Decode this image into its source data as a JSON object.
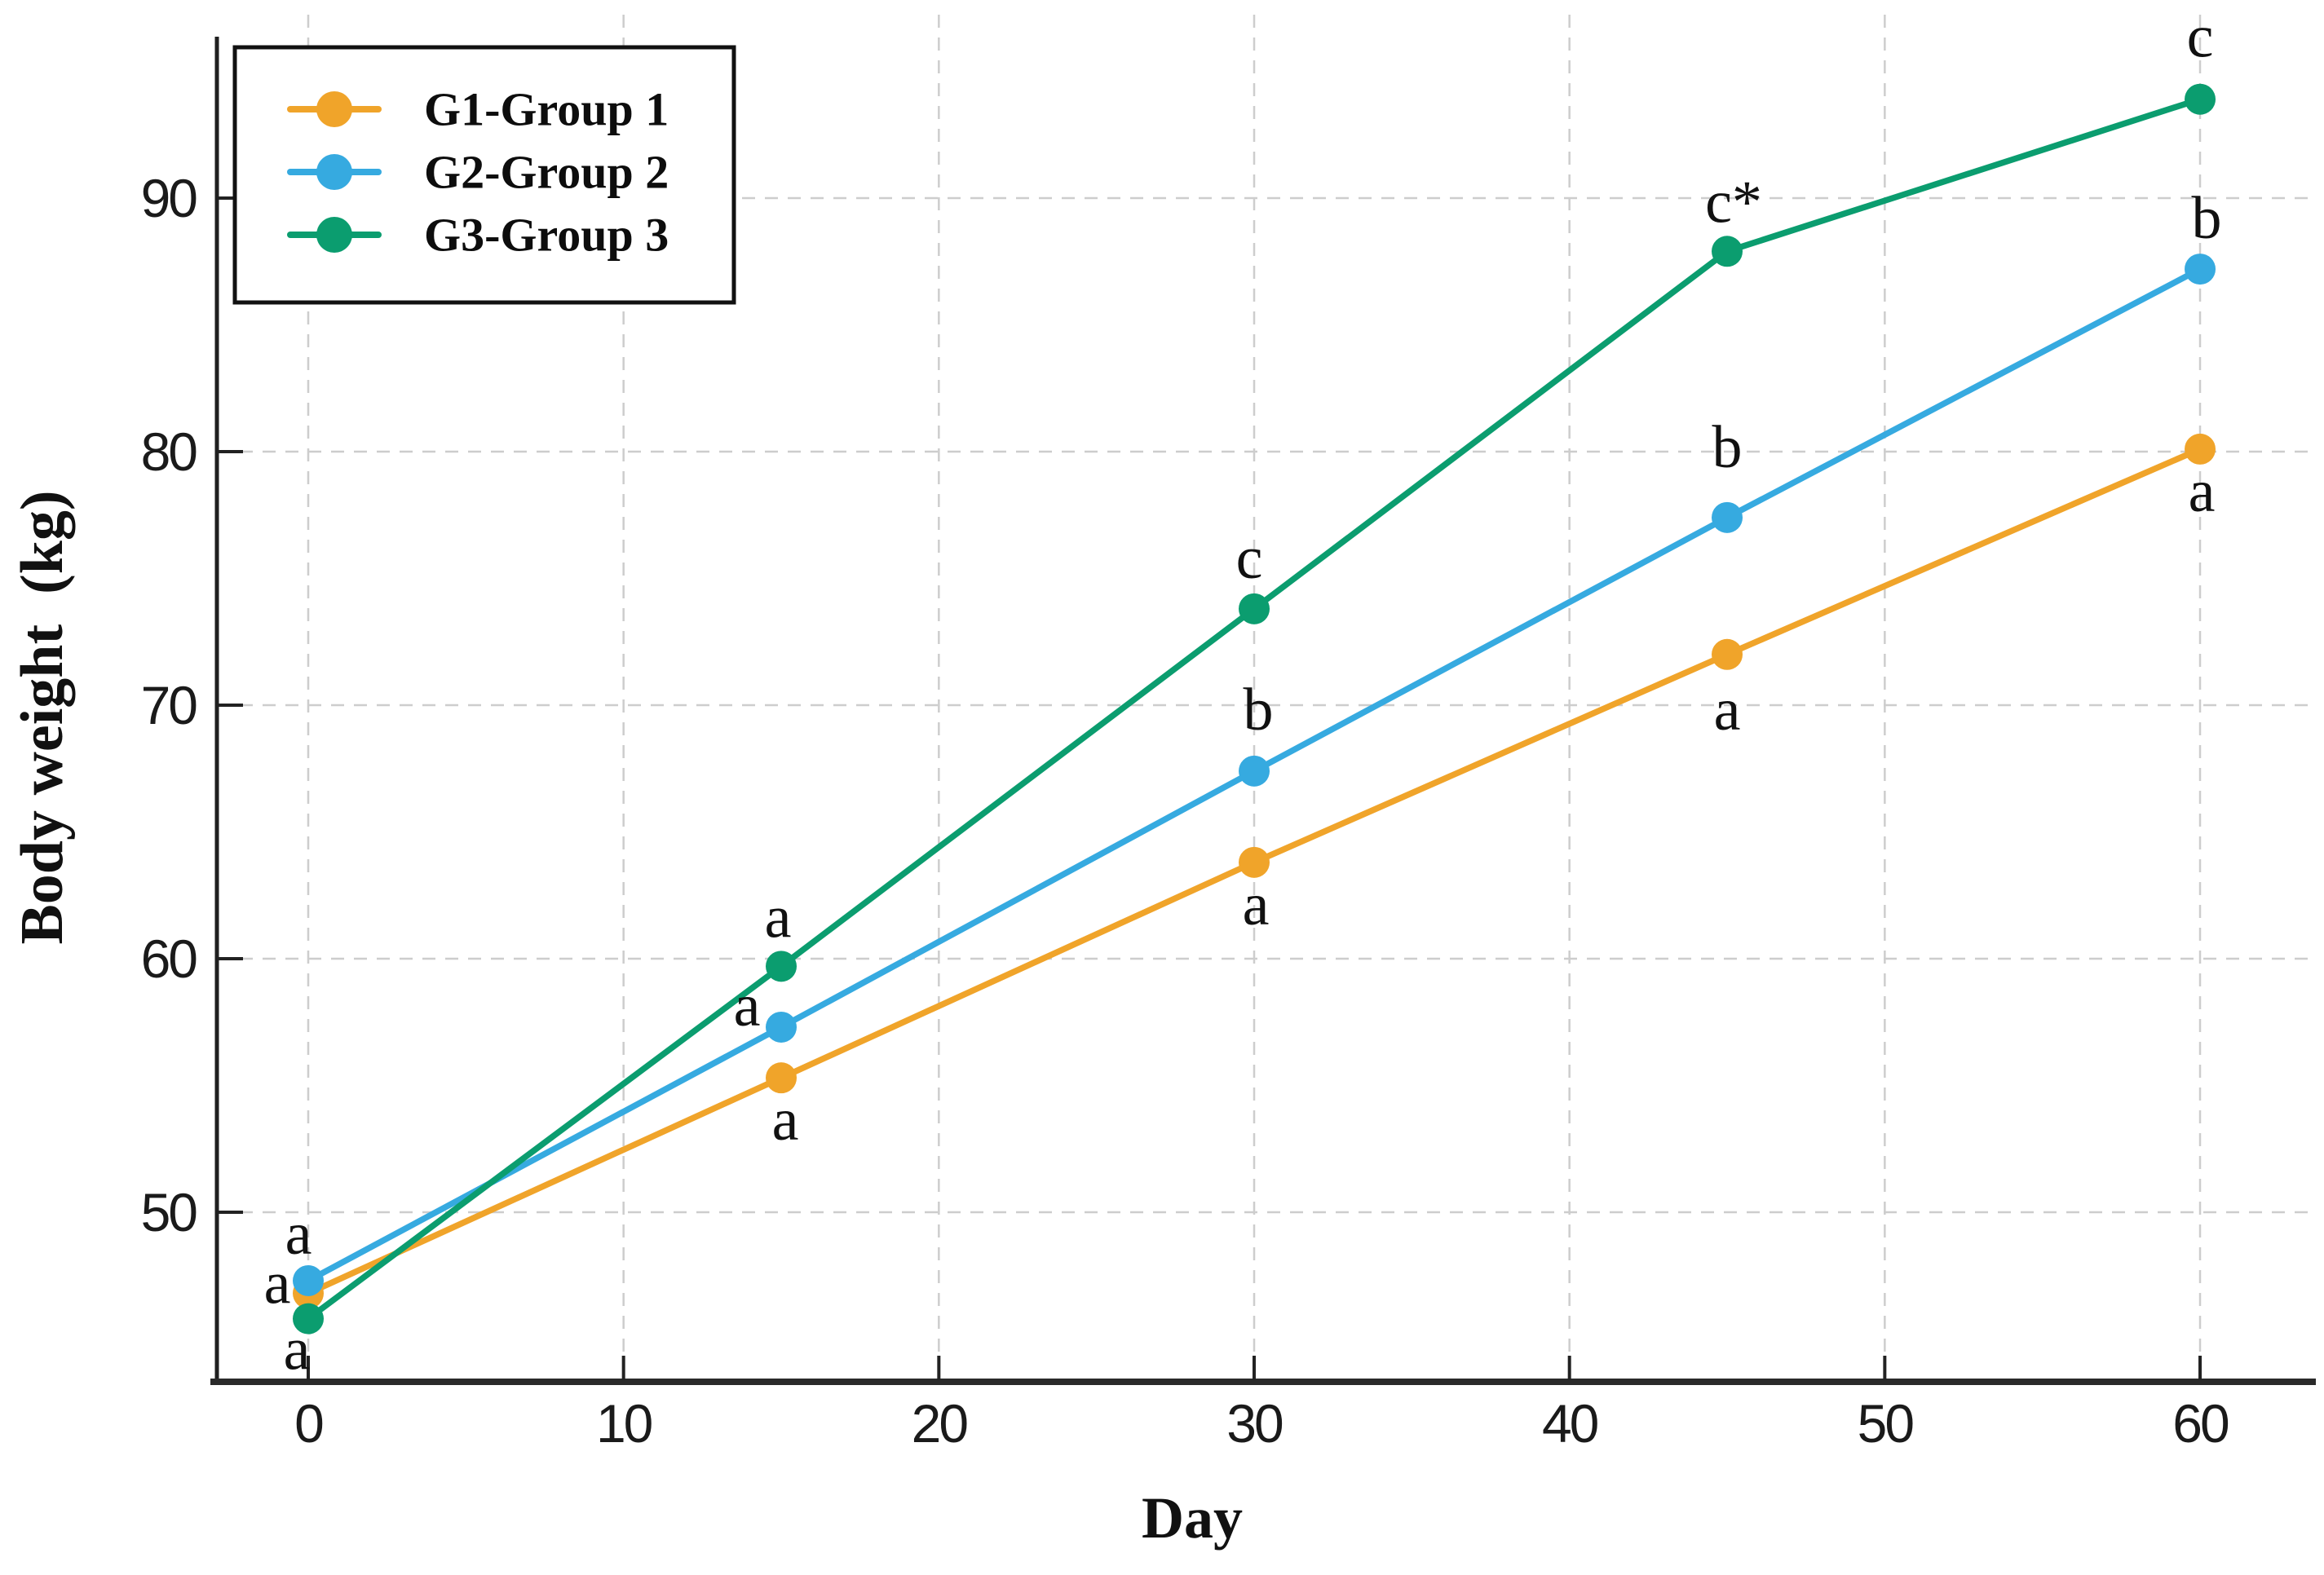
{
  "figure": {
    "background": "#ffffff",
    "text_color": "#1a1a1a",
    "grid_color": "#cdcdcd",
    "axis_color": "#2a2a2a"
  },
  "chart_data": {
    "type": "line",
    "title": "",
    "xlabel": "Day",
    "ylabel": "Body weight  (kg)",
    "x": [
      0,
      15,
      30,
      45,
      60
    ],
    "x_ticks": [
      0,
      10,
      20,
      30,
      40,
      50,
      60
    ],
    "y_ticks": [
      50,
      60,
      70,
      80,
      90
    ],
    "xlim": [
      -2.9,
      63.7
    ],
    "ylim": [
      43.3,
      97.2
    ],
    "grid": true,
    "grid_style": "dashed",
    "legend_position": "upper-left",
    "series": [
      {
        "name": "G1-Group 1",
        "color": "#F0A42A",
        "values": [
          46.8,
          55.3,
          63.8,
          72.0,
          80.1
        ],
        "sig_labels": [
          {
            "text": "a",
            "dx": -38,
            "dy": -12
          },
          {
            "text": "a",
            "dx": 5,
            "dy": 52
          },
          {
            "text": "a",
            "dx": 2,
            "dy": 52
          },
          {
            "text": "a",
            "dx": 0,
            "dy": 68
          },
          {
            "text": "a",
            "dx": 2,
            "dy": 52
          }
        ]
      },
      {
        "name": "G2-Group 2",
        "color": "#36AAE0",
        "values": [
          47.3,
          57.3,
          67.4,
          77.4,
          87.2
        ],
        "sig_labels": [
          {
            "text": "a",
            "dx": -12,
            "dy": -57
          },
          {
            "text": "a",
            "dx": -42,
            "dy": -26
          },
          {
            "text": "b",
            "dx": 5,
            "dy": -75
          },
          {
            "text": "b",
            "dx": 0,
            "dy": -86
          },
          {
            "text": "b",
            "dx": 8,
            "dy": -62
          }
        ]
      },
      {
        "name": "G3-Group 3",
        "color": "#0B9D6F",
        "values": [
          45.8,
          59.7,
          73.8,
          87.9,
          93.9
        ],
        "sig_labels": [
          {
            "text": "a",
            "dx": -14,
            "dy": 38
          },
          {
            "text": "a",
            "dx": -4,
            "dy": -60
          },
          {
            "text": "c",
            "dx": -6,
            "dy": -62
          },
          {
            "text": "c*",
            "dx": 8,
            "dy": -60
          },
          {
            "text": "c",
            "dx": 0,
            "dy": -76
          }
        ]
      }
    ]
  }
}
